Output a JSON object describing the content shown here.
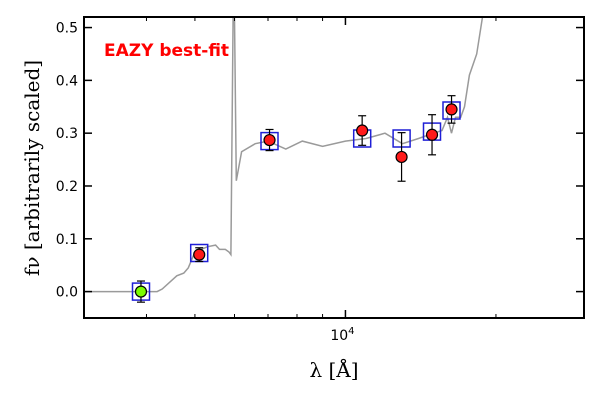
{
  "chart_data": {
    "type": "scatter",
    "title": "",
    "xlabel": "λ [Å]",
    "ylabel": "fν [arbitrarily scaled]",
    "x_scale": "log",
    "xlim": [
      3000,
      30000
    ],
    "ylim": [
      -0.05,
      0.52
    ],
    "grid": false,
    "x_ticks": [
      {
        "value": 10000,
        "base": "10",
        "exp": "4"
      }
    ],
    "y_ticks": [
      {
        "value": 0.0,
        "label": "0.0"
      },
      {
        "value": 0.1,
        "label": "0.1"
      },
      {
        "value": 0.2,
        "label": "0.2"
      },
      {
        "value": 0.3,
        "label": "0.3"
      },
      {
        "value": 0.4,
        "label": "0.4"
      },
      {
        "value": 0.5,
        "label": "0.5"
      }
    ],
    "annotation": {
      "text": "EAZY best-fit",
      "color": "#ff0000"
    },
    "colors": {
      "model_line": "#9a9a9a",
      "model_box": "#1f1fd6",
      "detection_fill": "#ff1a1a",
      "nondetection_fill": "#7cfc00",
      "errorbar": "#000000"
    },
    "series": [
      {
        "kind": "line",
        "x": [
          3000,
          4200,
          4300,
          4600,
          4750,
          4850,
          5000,
          5300,
          5500,
          5600,
          5750,
          5850,
          5900,
          5960,
          6000,
          6050,
          6200,
          6600,
          7000,
          7600,
          8200,
          9000,
          10000,
          11000,
          12000,
          13000,
          14000,
          15000,
          15600,
          16000,
          16300,
          16600,
          17000,
          17300,
          17700,
          18300,
          18800,
          19100
        ],
        "y": [
          0.0,
          0.0,
          0.005,
          0.03,
          0.035,
          0.045,
          0.075,
          0.085,
          0.088,
          0.08,
          0.08,
          0.075,
          0.07,
          0.52,
          0.52,
          0.21,
          0.265,
          0.28,
          0.285,
          0.27,
          0.285,
          0.275,
          0.285,
          0.29,
          0.3,
          0.28,
          0.29,
          0.3,
          0.305,
          0.33,
          0.3,
          0.33,
          0.33,
          0.35,
          0.41,
          0.45,
          0.52,
          0.52
        ]
      },
      {
        "kind": "model_points",
        "x": [
          3900,
          5100,
          7050,
          10800,
          12950,
          14900,
          16300
        ],
        "y": [
          0.0,
          0.073,
          0.285,
          0.29,
          0.29,
          0.303,
          0.343
        ]
      },
      {
        "kind": "observed_detections",
        "x": [
          5100,
          7050,
          10800,
          12950,
          14900,
          16300
        ],
        "y": [
          0.07,
          0.287,
          0.305,
          0.255,
          0.297,
          0.345
        ],
        "yerr": [
          0.013,
          0.02,
          0.028,
          0.046,
          0.038,
          0.026
        ]
      },
      {
        "kind": "observed_nondetection",
        "x": [
          3900
        ],
        "y": [
          0.0
        ],
        "yerr": [
          0.02
        ]
      }
    ]
  }
}
